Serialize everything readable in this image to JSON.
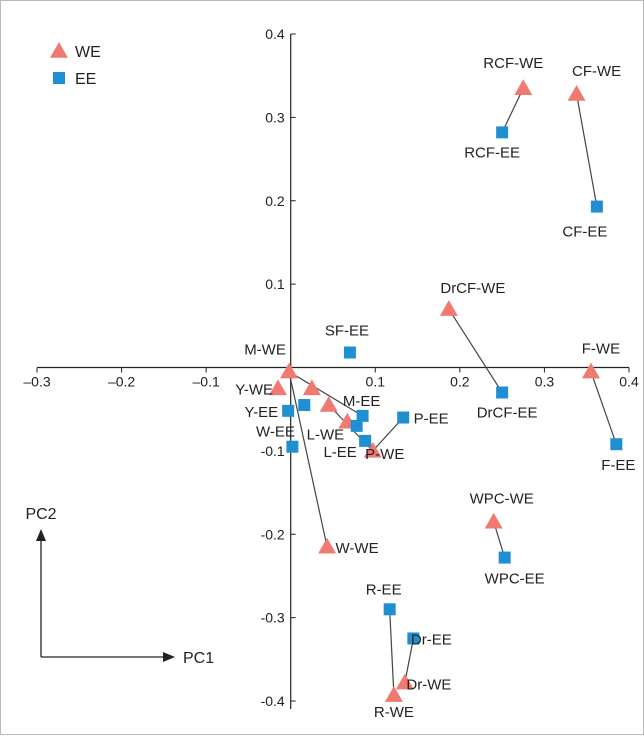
{
  "chart_data": {
    "type": "scatter",
    "title": "",
    "xlabel": "PC1",
    "ylabel": "PC2",
    "xlim": [
      -0.3,
      0.4
    ],
    "ylim": [
      -0.4,
      0.4
    ],
    "x_ticks": [
      -0.3,
      -0.2,
      -0.1,
      0.1,
      0.2,
      0.3,
      0.4
    ],
    "y_ticks": [
      0.4,
      0.3,
      0.2,
      0.1,
      -0.1,
      -0.2,
      -0.3,
      -0.4
    ],
    "legend_position": "top-left",
    "grid": false,
    "series": [
      {
        "name": "WE",
        "marker": "triangle",
        "color": "#f07a72",
        "points": [
          {
            "label": "RCF-WE",
            "x": 0.275,
            "y": 0.335
          },
          {
            "label": "CF-WE",
            "x": 0.338,
            "y": 0.328
          },
          {
            "label": "DrCF-WE",
            "x": 0.187,
            "y": 0.07
          },
          {
            "label": "F-WE",
            "x": 0.355,
            "y": -0.005
          },
          {
            "label": "M-WE",
            "x": -0.002,
            "y": -0.005
          },
          {
            "label": "Y-WE",
            "x": -0.015,
            "y": -0.025
          },
          {
            "label": "",
            "x": 0.025,
            "y": -0.025
          },
          {
            "label": "",
            "x": 0.045,
            "y": -0.045
          },
          {
            "label": "L-WE",
            "x": 0.067,
            "y": -0.065
          },
          {
            "label": "P-WE",
            "x": 0.097,
            "y": -0.1
          },
          {
            "label": "W-WE",
            "x": 0.043,
            "y": -0.215
          },
          {
            "label": "WPC-WE",
            "x": 0.24,
            "y": -0.185
          },
          {
            "label": "Dr-WE",
            "x": 0.135,
            "y": -0.378
          },
          {
            "label": "R-WE",
            "x": 0.122,
            "y": -0.393
          }
        ]
      },
      {
        "name": "EE",
        "marker": "square",
        "color": "#1f8fd1",
        "points": [
          {
            "label": "RCF-EE",
            "x": 0.25,
            "y": 0.282
          },
          {
            "label": "CF-EE",
            "x": 0.362,
            "y": 0.193
          },
          {
            "label": "SF-EE",
            "x": 0.07,
            "y": 0.018
          },
          {
            "label": "DrCF-EE",
            "x": 0.25,
            "y": -0.03
          },
          {
            "label": "F-EE",
            "x": 0.385,
            "y": -0.092
          },
          {
            "label": "Y-EE",
            "x": -0.003,
            "y": -0.052
          },
          {
            "label": "",
            "x": 0.016,
            "y": -0.045
          },
          {
            "label": "M-EE",
            "x": 0.085,
            "y": -0.058
          },
          {
            "label": "",
            "x": 0.078,
            "y": -0.07
          },
          {
            "label": "P-EE",
            "x": 0.133,
            "y": -0.06
          },
          {
            "label": "L-EE",
            "x": 0.088,
            "y": -0.088
          },
          {
            "label": "W-EE",
            "x": 0.002,
            "y": -0.095
          },
          {
            "label": "WPC-EE",
            "x": 0.253,
            "y": -0.228
          },
          {
            "label": "R-EE",
            "x": 0.117,
            "y": -0.29
          },
          {
            "label": "Dr-EE",
            "x": 0.145,
            "y": -0.325
          }
        ]
      }
    ],
    "connections": [
      [
        "RCF-WE",
        "RCF-EE"
      ],
      [
        "CF-WE",
        "CF-EE"
      ],
      [
        "DrCF-WE",
        "DrCF-EE"
      ],
      [
        "F-WE",
        "F-EE"
      ],
      [
        "M-WE",
        "W-WE"
      ],
      [
        "WPC-WE",
        "WPC-EE"
      ],
      [
        "R-WE",
        "R-EE"
      ],
      [
        "Dr-WE",
        "Dr-EE"
      ]
    ]
  }
}
